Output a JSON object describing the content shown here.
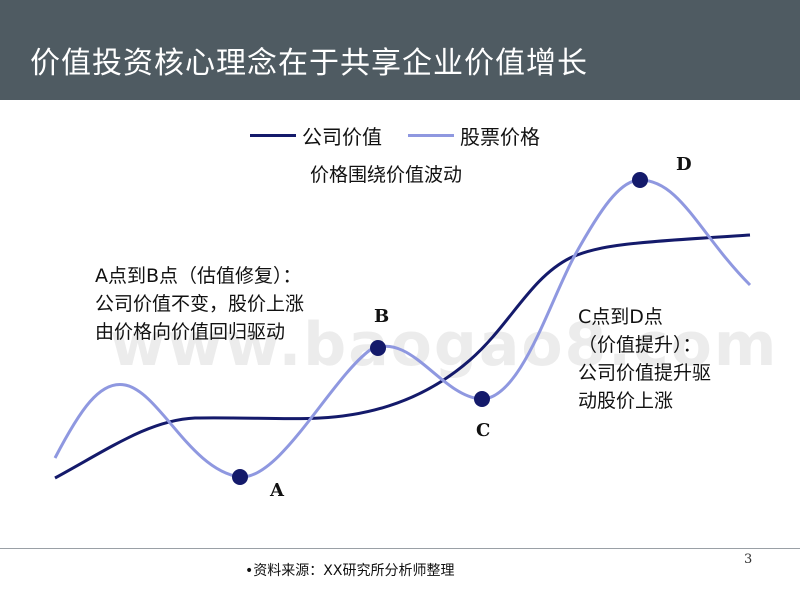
{
  "header": {
    "title": "价值投资核心理念在于共享企业价值增长"
  },
  "legend": {
    "items": [
      {
        "label": "公司价值",
        "color": "#141a6b"
      },
      {
        "label": "股票价格",
        "color": "#8f98e0"
      }
    ]
  },
  "subtitle": "价格围绕价值波动",
  "notes": {
    "ab": [
      "A点到B点（估值修复）：",
      "公司价值不变，股价上涨",
      "由价格向价值回归驱动"
    ],
    "cd": [
      "C点到D点",
      "（价值提升）：",
      "公司价值提升驱",
      "动股价上涨"
    ]
  },
  "points": [
    "A",
    "B",
    "C",
    "D"
  ],
  "watermark": "www.baogao8.com",
  "footer": {
    "source": "•资料来源：XX研究所分析师整理",
    "page": "3"
  },
  "chart_data": {
    "type": "line",
    "title": "",
    "xlabel": "",
    "ylabel": "",
    "series": [
      {
        "name": "公司价值",
        "color": "#141a6b"
      },
      {
        "name": "股票价格",
        "color": "#8f98e0"
      }
    ],
    "annotations": [
      {
        "label": "A",
        "series": "股票价格"
      },
      {
        "label": "B",
        "series": "股票价格"
      },
      {
        "label": "C",
        "series": "股票价格"
      },
      {
        "label": "D",
        "series": "股票价格"
      }
    ],
    "grid": false,
    "legend_position": "top"
  }
}
